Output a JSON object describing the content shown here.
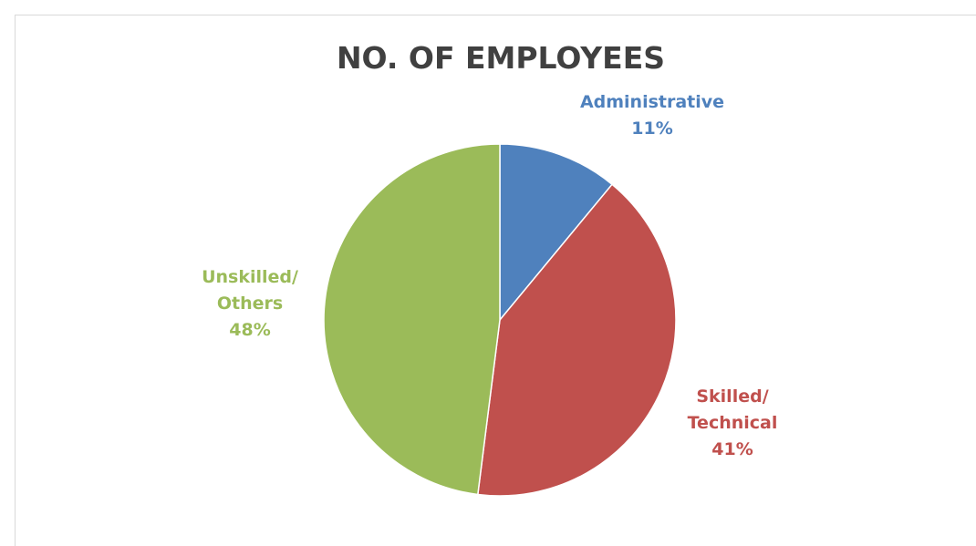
{
  "chart_data": {
    "type": "pie",
    "title": "NO. OF EMPLOYEES",
    "slices": [
      {
        "label_lines": [
          "Administrative"
        ],
        "percent_text": "11%",
        "value": 11,
        "color": "#4f81bd"
      },
      {
        "label_lines": [
          "Skilled/",
          "Technical"
        ],
        "percent_text": "41%",
        "value": 41,
        "color": "#c0504d"
      },
      {
        "label_lines": [
          "Unskilled/",
          "Others"
        ],
        "percent_text": "48%",
        "value": 48,
        "color": "#9bbb59"
      }
    ],
    "legend": "none",
    "data_labels": "outside"
  }
}
